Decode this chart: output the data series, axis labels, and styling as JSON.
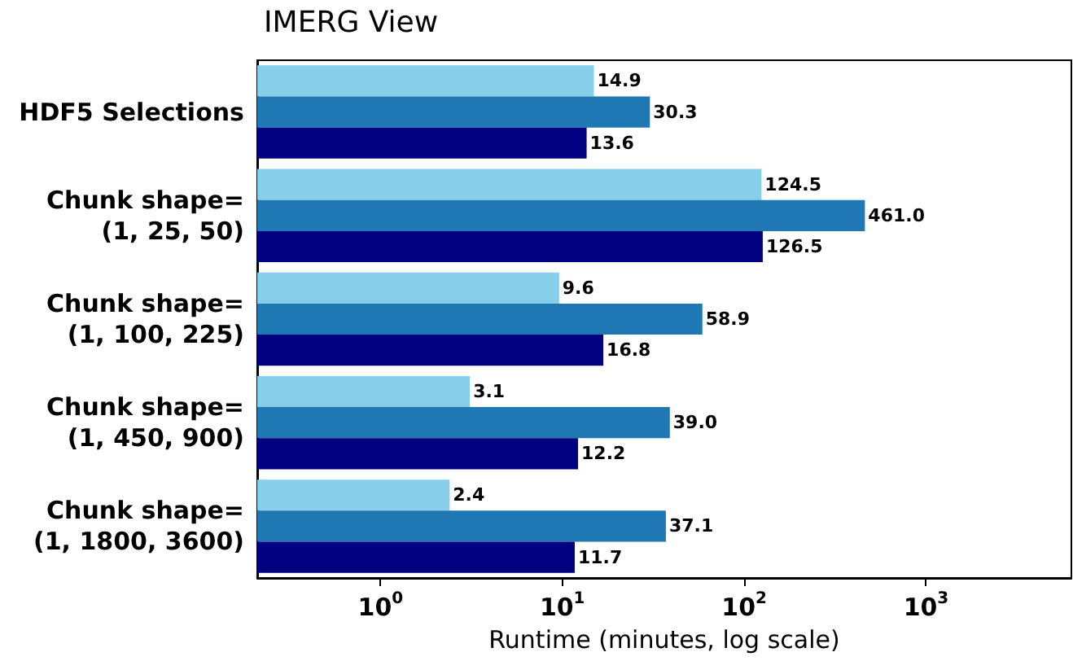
{
  "chart_data": {
    "type": "bar",
    "orientation": "horizontal",
    "title": "IMERG View",
    "xlabel": "Runtime (minutes, log scale)",
    "log": "x",
    "categories": [
      "HDF5 Selections",
      "Chunk shape=\n(1, 25, 50)",
      "Chunk shape=\n(1, 100, 225)",
      "Chunk shape=\n(1, 450, 900)",
      "Chunk shape=\n(1, 1800, 3600)"
    ],
    "series": [
      {
        "color": "#87ceeb",
        "values": [
          14.9,
          124.5,
          9.6,
          3.1,
          2.4
        ],
        "value_labels": [
          "14.9",
          "124.5",
          "9.6",
          "3.1",
          "2.4"
        ]
      },
      {
        "color": "#1f77b4",
        "values": [
          30.3,
          461.0,
          58.9,
          39.0,
          37.1
        ],
        "value_labels": [
          "30.3",
          "461.0",
          "58.9",
          "39.0",
          "37.1"
        ]
      },
      {
        "color": "#000080",
        "values": [
          13.6,
          126.5,
          16.8,
          12.2,
          11.7
        ],
        "value_labels": [
          "13.6",
          "126.5",
          "16.8",
          "12.2",
          "11.7"
        ]
      }
    ],
    "xlim": [
      0.21,
      6300
    ],
    "xticks": [
      {
        "value": 1,
        "label": "10$^{0}$"
      },
      {
        "value": 10,
        "label": "10$^{1}$"
      },
      {
        "value": 100,
        "label": "10$^{2}$"
      },
      {
        "value": 1000,
        "label": "10$^{3}$"
      }
    ],
    "grid": false
  }
}
